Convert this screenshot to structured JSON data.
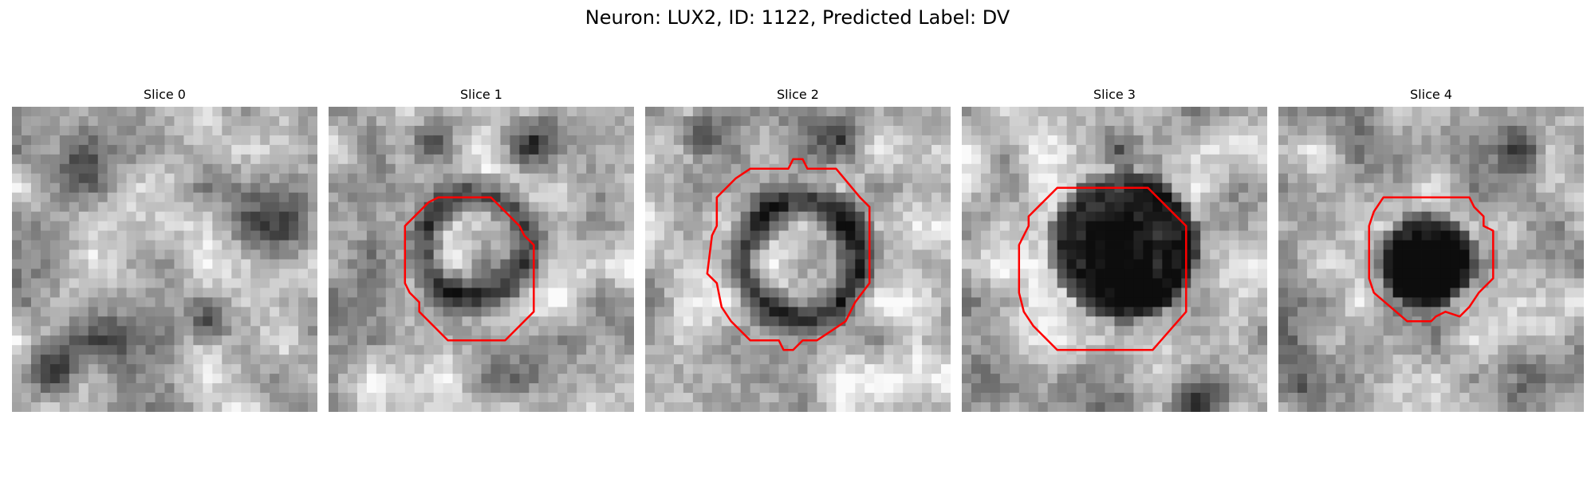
{
  "figure": {
    "title": "Neuron: LUX2, ID: 1122, Predicted Label: DV"
  },
  "panels": [
    {
      "title": "Slice 0",
      "has_contour": false,
      "appearance": "mottled gray texture, no cell outlined",
      "contour_color": "#ff0000"
    },
    {
      "title": "Slice 1",
      "has_contour": true,
      "appearance": "dark ring with bright center",
      "contour_color": "#ff0000"
    },
    {
      "title": "Slice 2",
      "has_contour": true,
      "appearance": "dark ring with bright center",
      "contour_color": "#ff0000"
    },
    {
      "title": "Slice 3",
      "has_contour": true,
      "appearance": "dark filled blob",
      "contour_color": "#ff0000"
    },
    {
      "title": "Slice 4",
      "has_contour": true,
      "appearance": "small dark blob",
      "contour_color": "#ff0000"
    }
  ],
  "colors": {
    "contour": "#ff0000",
    "colormap": "grayscale"
  }
}
